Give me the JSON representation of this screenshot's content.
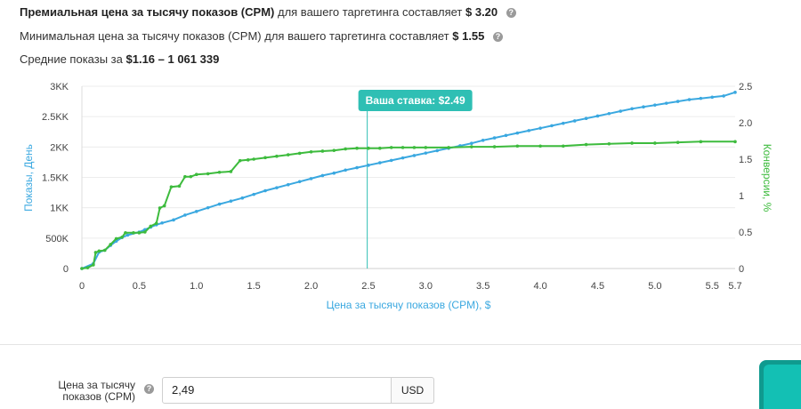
{
  "summary": {
    "premium": {
      "text": "Премиальная цена за тысячу показов (CPM)",
      "suffix": "для вашего таргетинга составляет",
      "value": "$ 3.20"
    },
    "minimum": {
      "text": "Минимальная цена за тысячу показов (CPM) для вашего таргетинга составляет",
      "value": "$ 1.55"
    },
    "average": {
      "text": "Средние показы за",
      "value": "$1.16 – 1 061 339"
    }
  },
  "help_glyph": "?",
  "chart_data": {
    "type": "line",
    "title": "",
    "xlabel": "Цена за тысячу показов (CPM), $",
    "ylabel_left": "Показы, День",
    "ylabel_right": "Конверсии, %",
    "x_ticks": [
      "0",
      "0.5",
      "1.0",
      "1.5",
      "2.0",
      "2.5",
      "3.0",
      "3.5",
      "4.0",
      "4.5",
      "5.0",
      "5.5",
      "5.7"
    ],
    "y_left_ticks": [
      "0",
      "500K",
      "1KK",
      "1.5KK",
      "2KK",
      "2.5KK",
      "3KK"
    ],
    "y_right_ticks": [
      "0",
      "0.5",
      "1",
      "1.5",
      "2.0",
      "2.5"
    ],
    "xlim": [
      0,
      5.7
    ],
    "ylim_left": [
      0,
      3000000
    ],
    "ylim_right": [
      0,
      2.5
    ],
    "grid": true,
    "bid_marker": {
      "x": 2.49,
      "label": "Ваша ставка: $2.49"
    },
    "series": [
      {
        "name": "Показы, День",
        "axis": "left",
        "color": "#3aa8e0",
        "points": [
          [
            0,
            0
          ],
          [
            0.1,
            80000
          ],
          [
            0.15,
            270000
          ],
          [
            0.2,
            300000
          ],
          [
            0.25,
            380000
          ],
          [
            0.3,
            450000
          ],
          [
            0.35,
            510000
          ],
          [
            0.4,
            550000
          ],
          [
            0.5,
            600000
          ],
          [
            0.55,
            640000
          ],
          [
            0.6,
            680000
          ],
          [
            0.65,
            720000
          ],
          [
            0.7,
            750000
          ],
          [
            0.8,
            800000
          ],
          [
            0.9,
            880000
          ],
          [
            1.0,
            940000
          ],
          [
            1.1,
            1000000
          ],
          [
            1.2,
            1060000
          ],
          [
            1.3,
            1110000
          ],
          [
            1.4,
            1160000
          ],
          [
            1.5,
            1220000
          ],
          [
            1.6,
            1280000
          ],
          [
            1.7,
            1330000
          ],
          [
            1.8,
            1380000
          ],
          [
            1.9,
            1430000
          ],
          [
            2.0,
            1480000
          ],
          [
            2.1,
            1530000
          ],
          [
            2.2,
            1570000
          ],
          [
            2.3,
            1620000
          ],
          [
            2.4,
            1660000
          ],
          [
            2.5,
            1700000
          ],
          [
            2.6,
            1740000
          ],
          [
            2.7,
            1780000
          ],
          [
            2.8,
            1820000
          ],
          [
            2.9,
            1860000
          ],
          [
            3.0,
            1900000
          ],
          [
            3.1,
            1940000
          ],
          [
            3.2,
            1980000
          ],
          [
            3.3,
            2020000
          ],
          [
            3.4,
            2060000
          ],
          [
            3.5,
            2110000
          ],
          [
            3.6,
            2150000
          ],
          [
            3.7,
            2190000
          ],
          [
            3.8,
            2230000
          ],
          [
            3.9,
            2270000
          ],
          [
            4.0,
            2310000
          ],
          [
            4.1,
            2350000
          ],
          [
            4.2,
            2390000
          ],
          [
            4.3,
            2430000
          ],
          [
            4.4,
            2470000
          ],
          [
            4.5,
            2510000
          ],
          [
            4.6,
            2550000
          ],
          [
            4.7,
            2590000
          ],
          [
            4.8,
            2630000
          ],
          [
            4.9,
            2660000
          ],
          [
            5.0,
            2690000
          ],
          [
            5.1,
            2720000
          ],
          [
            5.2,
            2750000
          ],
          [
            5.3,
            2780000
          ],
          [
            5.4,
            2800000
          ],
          [
            5.5,
            2820000
          ],
          [
            5.6,
            2840000
          ],
          [
            5.7,
            2900000
          ]
        ]
      },
      {
        "name": "Конверсии, %",
        "axis": "right",
        "color": "#3dbb3d",
        "points": [
          [
            0,
            0
          ],
          [
            0.05,
            0.01
          ],
          [
            0.1,
            0.05
          ],
          [
            0.12,
            0.22
          ],
          [
            0.15,
            0.24
          ],
          [
            0.2,
            0.25
          ],
          [
            0.25,
            0.33
          ],
          [
            0.3,
            0.41
          ],
          [
            0.35,
            0.43
          ],
          [
            0.38,
            0.49
          ],
          [
            0.45,
            0.49
          ],
          [
            0.5,
            0.49
          ],
          [
            0.55,
            0.5
          ],
          [
            0.6,
            0.58
          ],
          [
            0.65,
            0.62
          ],
          [
            0.68,
            0.83
          ],
          [
            0.72,
            0.86
          ],
          [
            0.78,
            1.12
          ],
          [
            0.85,
            1.13
          ],
          [
            0.9,
            1.26
          ],
          [
            0.95,
            1.26
          ],
          [
            1.0,
            1.29
          ],
          [
            1.1,
            1.3
          ],
          [
            1.2,
            1.32
          ],
          [
            1.3,
            1.33
          ],
          [
            1.38,
            1.48
          ],
          [
            1.45,
            1.49
          ],
          [
            1.5,
            1.5
          ],
          [
            1.6,
            1.52
          ],
          [
            1.7,
            1.54
          ],
          [
            1.8,
            1.56
          ],
          [
            1.9,
            1.58
          ],
          [
            2.0,
            1.6
          ],
          [
            2.1,
            1.61
          ],
          [
            2.2,
            1.62
          ],
          [
            2.3,
            1.64
          ],
          [
            2.4,
            1.65
          ],
          [
            2.5,
            1.65
          ],
          [
            2.6,
            1.65
          ],
          [
            2.7,
            1.66
          ],
          [
            2.8,
            1.66
          ],
          [
            2.9,
            1.66
          ],
          [
            3.0,
            1.66
          ],
          [
            3.2,
            1.66
          ],
          [
            3.4,
            1.67
          ],
          [
            3.6,
            1.67
          ],
          [
            3.8,
            1.68
          ],
          [
            4.0,
            1.68
          ],
          [
            4.2,
            1.68
          ],
          [
            4.4,
            1.7
          ],
          [
            4.6,
            1.71
          ],
          [
            4.8,
            1.72
          ],
          [
            5.0,
            1.72
          ],
          [
            5.2,
            1.73
          ],
          [
            5.4,
            1.74
          ],
          [
            5.7,
            1.74
          ]
        ]
      }
    ]
  },
  "form": {
    "label": "Цена за тысячу показов (CPM)",
    "value": "2,49",
    "currency": "USD"
  }
}
